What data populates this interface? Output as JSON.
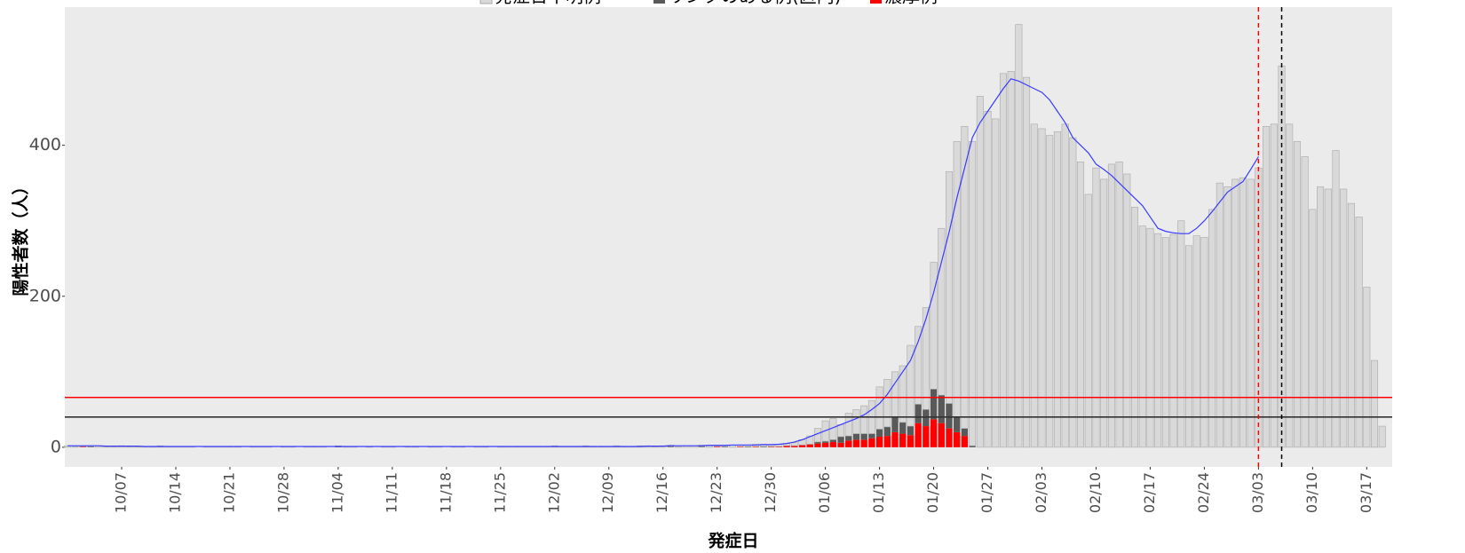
{
  "chart_data": {
    "type": "bar",
    "stacked": true,
    "x_label": "発症日",
    "y_label": "陽性者数（人）",
    "ylim": [
      -26,
      583
    ],
    "yticks": [
      0,
      200,
      400
    ],
    "grid": false,
    "legend": "top",
    "categories": [
      "09/30",
      "10/01",
      "10/02",
      "10/03",
      "10/04",
      "10/05",
      "10/06",
      "10/07",
      "10/08",
      "10/09",
      "10/10",
      "10/11",
      "10/12",
      "10/13",
      "10/14",
      "10/15",
      "10/16",
      "10/17",
      "10/18",
      "10/19",
      "10/20",
      "10/21",
      "10/22",
      "10/23",
      "10/24",
      "10/25",
      "10/26",
      "10/27",
      "10/28",
      "10/29",
      "10/30",
      "10/31",
      "11/01",
      "11/02",
      "11/03",
      "11/04",
      "11/05",
      "11/06",
      "11/07",
      "11/08",
      "11/09",
      "11/10",
      "11/11",
      "11/12",
      "11/13",
      "11/14",
      "11/15",
      "11/16",
      "11/17",
      "11/18",
      "11/19",
      "11/20",
      "11/21",
      "11/22",
      "11/23",
      "11/24",
      "11/25",
      "11/26",
      "11/27",
      "11/28",
      "11/29",
      "11/30",
      "12/01",
      "12/02",
      "12/03",
      "12/04",
      "12/05",
      "12/06",
      "12/07",
      "12/08",
      "12/09",
      "12/10",
      "12/11",
      "12/12",
      "12/13",
      "12/14",
      "12/15",
      "12/16",
      "12/17",
      "12/18",
      "12/19",
      "12/20",
      "12/21",
      "12/22",
      "12/23",
      "12/24",
      "12/25",
      "12/26",
      "12/27",
      "12/28",
      "12/29",
      "12/30",
      "12/31",
      "01/01",
      "01/02",
      "01/03",
      "01/04",
      "01/05",
      "01/06",
      "01/07",
      "01/08",
      "01/09",
      "01/10",
      "01/11",
      "01/12",
      "01/13",
      "01/14",
      "01/15",
      "01/16",
      "01/17",
      "01/18",
      "01/19",
      "01/20",
      "01/21",
      "01/22",
      "01/23",
      "01/24",
      "01/25",
      "01/26",
      "01/27",
      "01/28",
      "01/29",
      "01/30",
      "01/31",
      "02/01",
      "02/02",
      "02/03",
      "02/04",
      "02/05",
      "02/06",
      "02/07",
      "02/08",
      "02/09",
      "02/10",
      "02/11",
      "02/12",
      "02/13",
      "02/14",
      "02/15",
      "02/16",
      "02/17",
      "02/18",
      "02/19",
      "02/20",
      "02/21",
      "02/22",
      "02/23",
      "02/24",
      "02/25",
      "02/26",
      "02/27",
      "02/28",
      "03/01",
      "03/02",
      "03/03",
      "03/04",
      "03/05",
      "03/06",
      "03/07",
      "03/08",
      "03/09",
      "03/10",
      "03/11",
      "03/12",
      "03/13",
      "03/14",
      "03/15",
      "03/16",
      "03/17",
      "03/18",
      "03/19"
    ],
    "xticks": [
      "10/07",
      "10/14",
      "10/21",
      "10/28",
      "11/04",
      "11/11",
      "11/18",
      "11/25",
      "12/02",
      "12/09",
      "12/16",
      "12/23",
      "12/30",
      "01/06",
      "01/13",
      "01/20",
      "01/27",
      "02/03",
      "02/10",
      "02/17",
      "02/24",
      "03/03",
      "03/10",
      "03/17"
    ],
    "series": [
      {
        "name": "発症日不明例",
        "color": "#d9d9d9",
        "values": [
          2,
          1,
          1,
          1,
          2,
          1,
          1,
          2,
          1,
          1,
          1,
          1,
          2,
          1,
          1,
          1,
          1,
          0,
          1,
          1,
          1,
          1,
          1,
          0,
          1,
          1,
          1,
          0,
          1,
          1,
          0,
          1,
          1,
          1,
          0,
          1,
          1,
          1,
          0,
          1,
          0,
          1,
          1,
          0,
          1,
          1,
          0,
          1,
          1,
          0,
          1,
          1,
          0,
          1,
          1,
          0,
          1,
          1,
          1,
          1,
          1,
          1,
          1,
          2,
          1,
          1,
          1,
          2,
          1,
          1,
          1,
          2,
          1,
          1,
          2,
          2,
          1,
          2,
          2,
          1,
          2,
          2,
          2,
          3,
          2,
          2,
          3,
          2,
          2,
          3,
          3,
          2,
          3,
          3,
          4,
          7,
          11,
          18,
          27,
          28,
          16,
          30,
          32,
          37,
          44,
          56,
          63,
          60,
          75,
          107,
          103,
          135,
          168,
          221,
          307,
          365,
          400,
          403,
          465,
          445,
          435,
          495,
          498,
          560,
          490,
          428,
          422,
          413,
          418,
          428,
          410,
          378,
          335,
          370,
          355,
          375,
          378,
          362,
          318,
          293,
          290,
          283,
          278,
          282,
          300,
          267,
          280,
          278,
          315,
          350,
          345,
          355,
          357,
          355,
          370,
          425,
          428,
          505,
          428,
          405,
          385,
          315,
          345,
          342,
          393,
          342,
          323,
          305,
          212,
          115,
          28
        ]
      },
      {
        "name": "リンクのある例(区内)",
        "color": "#595959",
        "values": [
          0,
          0,
          0,
          1,
          0,
          0,
          0,
          0,
          0,
          0,
          0,
          0,
          0,
          0,
          0,
          0,
          0,
          0,
          0,
          0,
          0,
          0,
          0,
          0,
          0,
          0,
          0,
          0,
          0,
          0,
          0,
          0,
          0,
          0,
          0,
          1,
          0,
          0,
          0,
          0,
          0,
          0,
          0,
          0,
          0,
          0,
          0,
          0,
          0,
          0,
          0,
          0,
          0,
          0,
          0,
          0,
          0,
          0,
          0,
          0,
          0,
          0,
          0,
          0,
          0,
          0,
          0,
          0,
          0,
          0,
          0,
          0,
          0,
          0,
          0,
          0,
          0,
          0,
          1,
          0,
          0,
          0,
          1,
          0,
          0,
          1,
          0,
          0,
          1,
          0,
          1,
          0,
          0,
          0,
          0,
          0,
          0,
          2,
          2,
          3,
          8,
          6,
          8,
          8,
          6,
          10,
          12,
          20,
          15,
          12,
          25,
          22,
          40,
          37,
          33,
          20,
          10,
          2,
          0,
          0,
          0,
          0,
          0,
          0,
          0,
          0,
          0,
          0,
          0,
          0,
          0,
          0,
          0,
          0,
          0,
          0,
          0,
          0,
          0,
          0,
          0,
          0,
          0,
          0,
          0,
          0,
          0,
          0,
          0,
          0,
          0,
          0,
          0,
          0,
          0,
          0,
          0,
          0,
          0,
          0,
          0,
          0,
          0,
          0,
          0,
          0,
          0,
          0,
          0,
          0,
          0
        ]
      },
      {
        "name": "濃厚例",
        "color": "#ff0000",
        "values": [
          0,
          0,
          1,
          0,
          0,
          0,
          0,
          0,
          0,
          0,
          0,
          0,
          0,
          0,
          0,
          0,
          0,
          0,
          0,
          0,
          0,
          0,
          0,
          0,
          0,
          0,
          0,
          0,
          0,
          0,
          0,
          0,
          0,
          0,
          0,
          0,
          0,
          0,
          0,
          0,
          0,
          0,
          0,
          0,
          0,
          0,
          0,
          0,
          0,
          0,
          0,
          0,
          0,
          0,
          0,
          0,
          0,
          0,
          0,
          0,
          0,
          0,
          0,
          0,
          0,
          0,
          0,
          0,
          0,
          0,
          0,
          0,
          0,
          0,
          0,
          0,
          0,
          0,
          0,
          0,
          0,
          0,
          0,
          0,
          1,
          0,
          0,
          1,
          0,
          1,
          0,
          1,
          1,
          2,
          2,
          3,
          4,
          5,
          6,
          7,
          6,
          9,
          10,
          10,
          12,
          14,
          15,
          20,
          18,
          16,
          32,
          28,
          37,
          32,
          25,
          20,
          15,
          0,
          0,
          0,
          0,
          0,
          0,
          0,
          0,
          0,
          0,
          0,
          0,
          0,
          0,
          0,
          0,
          0,
          0,
          0,
          0,
          0,
          0,
          0,
          0,
          0,
          0,
          0,
          0,
          0,
          0,
          0,
          0,
          0,
          0,
          0,
          0,
          0,
          0,
          0,
          0,
          0,
          0,
          0,
          0,
          0,
          0,
          0,
          0,
          0,
          0,
          0,
          0,
          0,
          0
        ]
      }
    ],
    "line": {
      "color": "#3a3aff",
      "values": [
        2,
        2,
        2,
        2,
        2,
        1.5,
        1.5,
        1.5,
        1.5,
        1.5,
        1,
        1,
        1,
        1,
        1,
        1,
        1,
        1,
        1,
        1,
        1,
        1,
        1,
        1,
        1,
        1,
        1,
        1,
        1,
        1,
        1,
        1,
        1,
        1,
        1,
        1,
        1,
        1,
        1,
        1,
        1,
        1,
        1,
        1,
        1,
        1,
        1,
        1,
        1,
        1,
        1,
        1,
        1,
        1,
        1,
        1,
        1,
        1,
        1,
        1,
        1,
        1,
        1,
        1,
        1,
        1,
        1,
        1,
        1,
        1,
        1,
        1,
        1,
        1,
        1,
        1.5,
        1.5,
        1.5,
        2,
        2,
        2,
        2,
        2,
        2.5,
        2.5,
        2.5,
        3,
        3,
        3,
        3,
        3.5,
        3.5,
        4,
        5,
        7,
        10,
        14,
        18,
        22,
        26,
        30,
        34,
        38,
        43,
        50,
        58,
        70,
        85,
        100,
        115,
        140,
        170,
        205,
        245,
        285,
        330,
        370,
        410,
        430,
        445,
        460,
        475,
        488,
        485,
        480,
        475,
        470,
        460,
        445,
        430,
        410,
        400,
        390,
        375,
        368,
        360,
        350,
        340,
        330,
        320,
        305,
        290,
        286,
        284,
        283,
        283,
        290,
        300,
        312,
        325,
        338,
        345,
        352,
        368,
        385,
        null,
        null,
        null,
        null,
        null,
        null,
        null,
        null,
        null,
        null,
        null,
        null,
        null,
        null,
        null,
        null
      ]
    },
    "hlines": [
      {
        "y": 66,
        "color": "#ff0000"
      },
      {
        "y": 40,
        "color": "#333333"
      }
    ],
    "vlines": [
      {
        "x": "03/03",
        "color": "#ff0000"
      },
      {
        "x": "03/06",
        "color": "#000000"
      }
    ]
  }
}
